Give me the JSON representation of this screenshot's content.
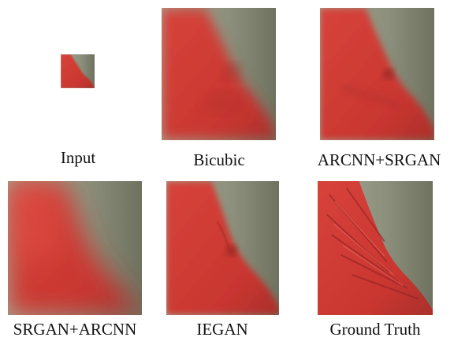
{
  "figure": {
    "panels": [
      {
        "key": "input",
        "caption": "Input"
      },
      {
        "key": "bicubic",
        "caption": "Bicubic"
      },
      {
        "key": "arcnn",
        "caption": "ARCNN+SRGAN"
      },
      {
        "key": "srgan",
        "caption": "SRGAN+ARCNN"
      },
      {
        "key": "iegan",
        "caption": "IEGAN"
      },
      {
        "key": "gt",
        "caption": "Ground Truth"
      }
    ]
  },
  "colors": {
    "feather_red": "#d23a34",
    "feather_dark": "#9e2a2a",
    "background_gray": "#8a8f7c",
    "background_light": "#b9b9a7"
  }
}
